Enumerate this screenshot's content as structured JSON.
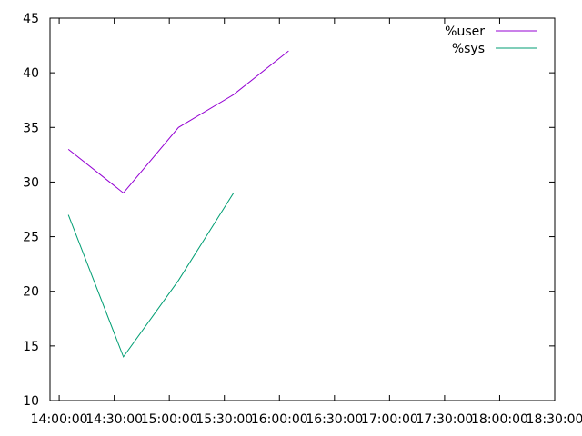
{
  "chart_data": {
    "type": "line",
    "title": "",
    "xlabel": "",
    "ylabel": "",
    "x_tick_labels": [
      "14:00:00",
      "14:30:00",
      "15:00:00",
      "15:30:00",
      "16:00:00",
      "16:30:00",
      "17:00:00",
      "17:30:00",
      "18:00:00",
      "18:30:00"
    ],
    "x_minutes": [
      0,
      30,
      60,
      90,
      120,
      150,
      180,
      210,
      240,
      270
    ],
    "xlim_minutes": [
      -5,
      270
    ],
    "ylim": [
      10,
      45
    ],
    "y_ticks": [
      10,
      15,
      20,
      25,
      30,
      35,
      40,
      45
    ],
    "grid": false,
    "legend_position": "top-right",
    "x": [
      5,
      35,
      65,
      95,
      125
    ],
    "series": [
      {
        "name": "%user",
        "color": "#9400d3",
        "values": [
          33,
          29,
          35,
          38,
          42
        ]
      },
      {
        "name": "%sys",
        "color": "#009e73",
        "values": [
          27,
          14,
          21,
          29,
          29
        ]
      }
    ]
  }
}
